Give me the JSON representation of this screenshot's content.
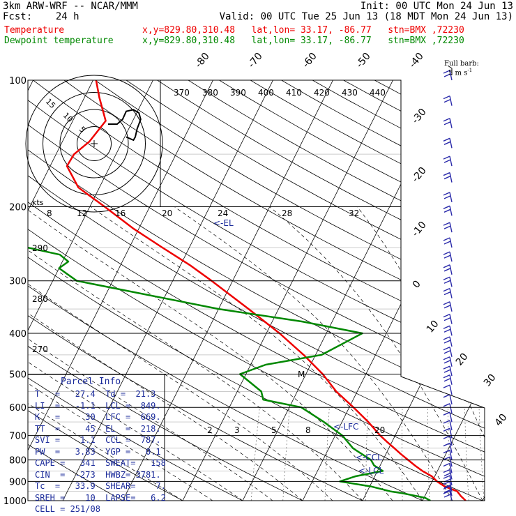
{
  "header": {
    "line1_left": "3km ARW-WRF -- NCAR/MMM",
    "line1_right": "Init: 00 UTC Mon 24 Jun 13",
    "line2_left": "Fcst:    24 h",
    "line2_right": "Valid: 00 UTC Tue 25 Jun 13 (18 MDT Mon 24 Jun 13)",
    "line3_left": "Temperature",
    "line3_right": "x,y=829.80,310.48   lat,lon= 33.17, -86.77   stn=BMX ,72230",
    "line4_left": "Dewpoint temperature",
    "line4_right": "x,y=829.80,310.48   lat,lon= 33.17, -86.77   stn=BMX ,72230"
  },
  "wind_legend": {
    "line1": "Full barb:",
    "line2": "5 m s",
    "exp": "-1"
  },
  "hodograph": {
    "units": "kts",
    "ring_labels": [
      "5",
      "10",
      "15"
    ],
    "trace_u_kts": [
      0,
      5,
      8,
      10,
      14,
      17,
      18,
      16,
      15,
      14,
      10
    ],
    "trace_v_kts": [
      0,
      0,
      3,
      8,
      9,
      7,
      3,
      -3,
      -8,
      -10,
      -8
    ]
  },
  "parcel_info": {
    "title": "Parcel Info",
    "rows": [
      "T   =   27.4  Td =  21.3",
      "LI  =   -1.1  LCL =  849.",
      "K   =     30  LFC =  669.",
      "TT  =     45  EL  =  218.",
      "SVI =    1.1  CCL =  787.",
      "PW  =   3.83  YGP =   0.1",
      "CAPE =   341  SWEAT=   158",
      "CIN  =  -273  HWBZ= 3781.",
      "Tc  =   33.9  SHEAR=    7.",
      "SREH =    10  LAPSE=   6.2",
      "CELL = 251/08"
    ]
  },
  "markers": {
    "el": "<-EL",
    "lfc": "<-LFC",
    "ccl": "<-CCL",
    "lcl": "<-LCL",
    "m": "M"
  },
  "chart_data": {
    "type": "skew-T log-P sounding",
    "y_axis": {
      "quantity": "pressure (hPa)",
      "scale": "log",
      "ticks": [
        100,
        200,
        300,
        400,
        500,
        600,
        700,
        800,
        900,
        1000
      ]
    },
    "isotherm_labels_C": [
      -80,
      -70,
      -60,
      -50,
      -40,
      -30,
      -20,
      -10,
      0,
      10,
      20,
      30,
      40
    ],
    "theta_labels_K": [
      370,
      380,
      390,
      400,
      410,
      420,
      430,
      440,
      290,
      280,
      270
    ],
    "mixing_ratio_labels_top": [
      "8",
      "12",
      "16",
      "20",
      "24",
      "28",
      "32"
    ],
    "mixing_ratio_labels_low": [
      "2",
      "3",
      "5",
      "8",
      "20"
    ],
    "series": [
      {
        "name": "Temperature",
        "color": "#ee0000",
        "pressure": [
          1000,
          975,
          950,
          925,
          900,
          875,
          850,
          825,
          800,
          775,
          750,
          725,
          700,
          650,
          600,
          550,
          500,
          450,
          400,
          350,
          300,
          275,
          250,
          225,
          200,
          180,
          160,
          150,
          140,
          125,
          110,
          100
        ],
        "temperature_C": [
          27.2,
          26.0,
          25.0,
          22.5,
          20.8,
          19.5,
          17.5,
          15.8,
          14.2,
          12.5,
          10.9,
          9.2,
          7.5,
          4.4,
          0.7,
          -3.5,
          -7.2,
          -12.0,
          -17.8,
          -25.0,
          -33.5,
          -38.5,
          -44.5,
          -51.0,
          -57.5,
          -63.5,
          -67.2,
          -67.0,
          -65.5,
          -64.5,
          -67.5,
          -69.5
        ]
      },
      {
        "name": "Dewpoint temperature",
        "color": "#008800",
        "pressure": [
          1000,
          985,
          975,
          960,
          950,
          925,
          900,
          875,
          850,
          825,
          800,
          775,
          750,
          700,
          650,
          600,
          575,
          550,
          500,
          475,
          450,
          400,
          375,
          350,
          300,
          280,
          270,
          260,
          250,
          220,
          200,
          170,
          150,
          130,
          110,
          100
        ],
        "temperature_C": [
          21.3,
          20.2,
          18.6,
          16.0,
          13.8,
          10.2,
          4.6,
          6.8,
          10.9,
          9.0,
          8.0,
          6.0,
          4.0,
          1.2,
          -3.0,
          -8.0,
          -15.0,
          -16.0,
          -21.0,
          -17.5,
          -9.0,
          -4.0,
          -15.0,
          -30.0,
          -56.0,
          -60.0,
          -59.0,
          -61.0,
          -67.0,
          -75.5,
          -81.5,
          -92.5,
          -98.0,
          -101.0,
          -99.5,
          -99.0
        ]
      }
    ],
    "parcel_levels_hPa": {
      "EL": 218,
      "LFC": 669,
      "CCL": 787,
      "LCL": 849
    },
    "wind_barbs": {
      "pressure": [
        100,
        115,
        130,
        145,
        160,
        175,
        195,
        210,
        230,
        250,
        270,
        290,
        310,
        330,
        355,
        380,
        405,
        430,
        455,
        480,
        505,
        530,
        560,
        590,
        620,
        650,
        680,
        710,
        740,
        770,
        800,
        830,
        860,
        890,
        920,
        950,
        975,
        1000
      ],
      "speed_ms": [
        10,
        10,
        10,
        10,
        10,
        10,
        10,
        10,
        10,
        10,
        10,
        10,
        10,
        10,
        10,
        10,
        10,
        10,
        10,
        10,
        10,
        10,
        5,
        5,
        5,
        5,
        5,
        5,
        5,
        5,
        5,
        5,
        5,
        10,
        10,
        10,
        10,
        10
      ]
    }
  }
}
